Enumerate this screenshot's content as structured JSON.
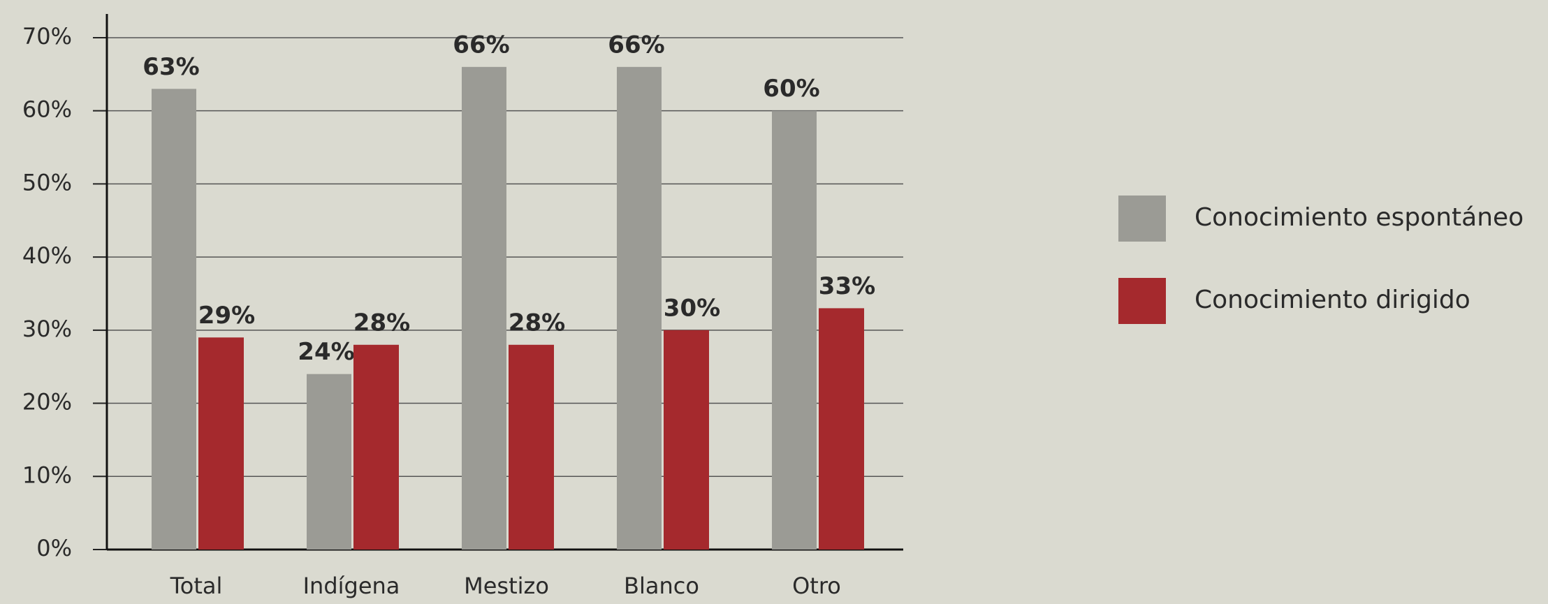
{
  "chart_data": {
    "type": "bar",
    "categories": [
      "Total",
      "Indígena",
      "Mestizo",
      "Blanco",
      "Otro"
    ],
    "series": [
      {
        "name": "Conocimiento espontáneo",
        "color": "#9b9b95",
        "values": [
          63,
          24,
          66,
          66,
          60
        ],
        "value_labels": [
          "63%",
          "24%",
          "66%",
          "66%",
          "60%"
        ]
      },
      {
        "name": "Conocimiento dirigido",
        "color": "#a5292d",
        "values": [
          29,
          28,
          28,
          30,
          33
        ],
        "value_labels": [
          "29%",
          "28%",
          "28%",
          "30%",
          "33%"
        ]
      }
    ],
    "ylim": [
      0,
      72
    ],
    "yticks": [
      {
        "value": 0,
        "label": "0%"
      },
      {
        "value": 10,
        "label": "10%"
      },
      {
        "value": 20,
        "label": "20%"
      },
      {
        "value": 30,
        "label": "30%"
      },
      {
        "value": 40,
        "label": "40%"
      },
      {
        "value": 50,
        "label": "50%"
      },
      {
        "value": 60,
        "label": "60%"
      },
      {
        "value": 70,
        "label": "70%"
      }
    ],
    "grid": true,
    "legend": "right"
  }
}
